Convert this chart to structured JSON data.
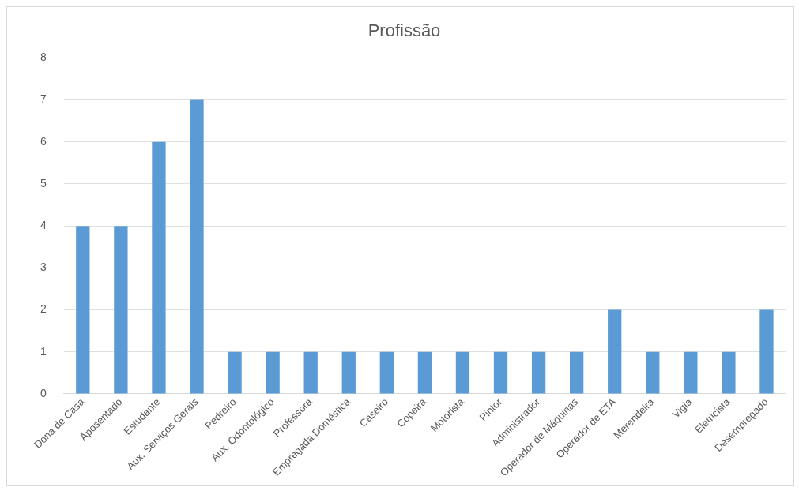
{
  "chart_data": {
    "type": "bar",
    "title": "Profissão",
    "categories": [
      "Dona de Casa",
      "Aposentado",
      "Estudante",
      "Aux. Serviços Gerais",
      "Pedreiro",
      "Aux. Odontológico",
      "Professora",
      "Empregada Doméstica",
      "Caseiro",
      "Copeira",
      "Motorista",
      "Pintor",
      "Administrador",
      "Operador de Máquinas",
      "Operador de ETA",
      "Merendeira",
      "Vigia",
      "Eletricista",
      "Desempregado"
    ],
    "values": [
      4,
      4,
      6,
      7,
      1,
      1,
      1,
      1,
      1,
      1,
      1,
      1,
      1,
      1,
      2,
      1,
      1,
      1,
      2
    ],
    "color": "#5b9bd5",
    "ylim": [
      0,
      8
    ],
    "yticks": [
      0,
      1,
      2,
      3,
      4,
      5,
      6,
      7,
      8
    ],
    "grid": "y"
  }
}
